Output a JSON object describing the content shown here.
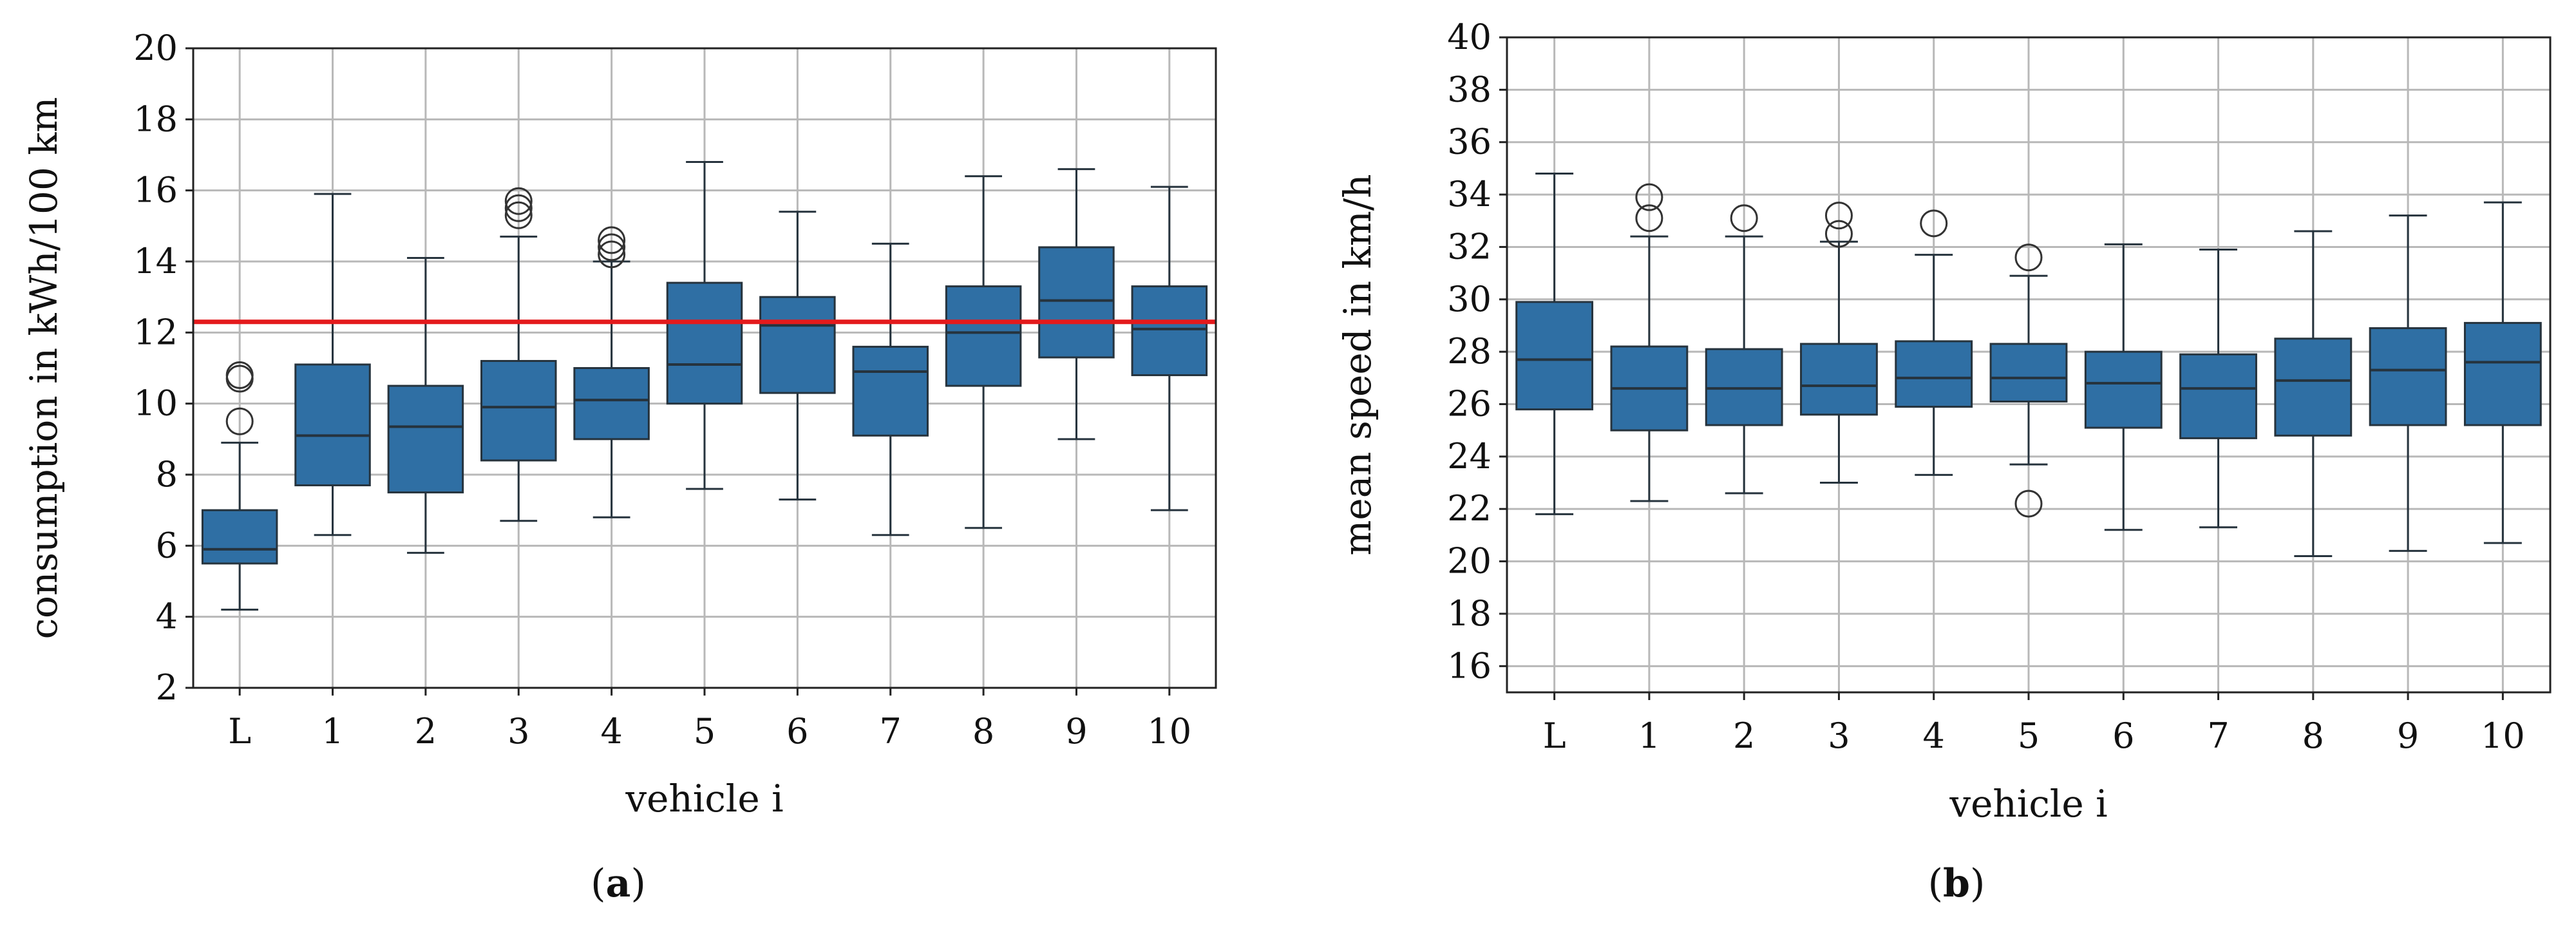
{
  "colors": {
    "box_fill": "#2f6fa4",
    "box_edge": "#26333d",
    "grid": "#b8b8b8",
    "reference_line": "#e41a1c",
    "highlight_tick": "#e41a1c"
  },
  "captions": {
    "a": "a",
    "b": "b"
  },
  "chart_data": [
    {
      "id": "a",
      "type": "boxplot",
      "xlabel": "vehicle i",
      "ylabel": "consumption in kWh/100 km",
      "categories": [
        "L",
        "1",
        "2",
        "3",
        "4",
        "5",
        "6",
        "7",
        "8",
        "9",
        "10"
      ],
      "highlighted_categories": [
        "L"
      ],
      "ylim": [
        2,
        20
      ],
      "yticks": [
        2,
        4,
        6,
        8,
        10,
        12,
        14,
        16,
        18,
        20
      ],
      "grid": true,
      "reference_line": {
        "y": 12.3,
        "color": "#e41a1c"
      },
      "boxes": [
        {
          "category": "L",
          "whisker_low": 4.2,
          "q1": 5.5,
          "median": 5.9,
          "q3": 7.0,
          "whisker_high": 8.9,
          "outliers": [
            9.5,
            10.7,
            10.8
          ]
        },
        {
          "category": "1",
          "whisker_low": 6.3,
          "q1": 7.7,
          "median": 9.1,
          "q3": 11.1,
          "whisker_high": 15.9,
          "outliers": []
        },
        {
          "category": "2",
          "whisker_low": 5.8,
          "q1": 7.5,
          "median": 9.35,
          "q3": 10.5,
          "whisker_high": 14.1,
          "outliers": []
        },
        {
          "category": "3",
          "whisker_low": 6.7,
          "q1": 8.4,
          "median": 9.9,
          "q3": 11.2,
          "whisker_high": 14.7,
          "outliers": [
            15.3,
            15.5,
            15.7
          ]
        },
        {
          "category": "4",
          "whisker_low": 6.8,
          "q1": 9.0,
          "median": 10.1,
          "q3": 11.0,
          "whisker_high": 14.0,
          "outliers": [
            14.2,
            14.4,
            14.6
          ]
        },
        {
          "category": "5",
          "whisker_low": 7.6,
          "q1": 10.0,
          "median": 11.1,
          "q3": 13.4,
          "whisker_high": 16.8,
          "outliers": []
        },
        {
          "category": "6",
          "whisker_low": 7.3,
          "q1": 10.3,
          "median": 12.2,
          "q3": 13.0,
          "whisker_high": 15.4,
          "outliers": []
        },
        {
          "category": "7",
          "whisker_low": 6.3,
          "q1": 9.1,
          "median": 10.9,
          "q3": 11.6,
          "whisker_high": 14.5,
          "outliers": []
        },
        {
          "category": "8",
          "whisker_low": 6.5,
          "q1": 10.5,
          "median": 12.0,
          "q3": 13.3,
          "whisker_high": 16.4,
          "outliers": []
        },
        {
          "category": "9",
          "whisker_low": 9.0,
          "q1": 11.3,
          "median": 12.9,
          "q3": 14.4,
          "whisker_high": 16.6,
          "outliers": []
        },
        {
          "category": "10",
          "whisker_low": 7.0,
          "q1": 10.8,
          "median": 12.1,
          "q3": 13.3,
          "whisker_high": 16.1,
          "outliers": []
        }
      ]
    },
    {
      "id": "b",
      "type": "boxplot",
      "xlabel": "vehicle i",
      "ylabel": "mean speed in km/h",
      "categories": [
        "L",
        "1",
        "2",
        "3",
        "4",
        "5",
        "6",
        "7",
        "8",
        "9",
        "10"
      ],
      "highlighted_categories": [
        "L"
      ],
      "ylim": [
        15,
        40
      ],
      "yticks": [
        16,
        18,
        20,
        22,
        24,
        26,
        28,
        30,
        32,
        34,
        36,
        38,
        40
      ],
      "grid": true,
      "boxes": [
        {
          "category": "L",
          "whisker_low": 21.8,
          "q1": 25.8,
          "median": 27.7,
          "q3": 29.9,
          "whisker_high": 34.8,
          "outliers": []
        },
        {
          "category": "1",
          "whisker_low": 22.3,
          "q1": 25.0,
          "median": 26.6,
          "q3": 28.2,
          "whisker_high": 32.4,
          "outliers": [
            33.1,
            33.9
          ]
        },
        {
          "category": "2",
          "whisker_low": 22.6,
          "q1": 25.2,
          "median": 26.6,
          "q3": 28.1,
          "whisker_high": 32.4,
          "outliers": [
            33.1
          ]
        },
        {
          "category": "3",
          "whisker_low": 23.0,
          "q1": 25.6,
          "median": 26.7,
          "q3": 28.3,
          "whisker_high": 32.2,
          "outliers": [
            32.5,
            33.2
          ]
        },
        {
          "category": "4",
          "whisker_low": 23.3,
          "q1": 25.9,
          "median": 27.0,
          "q3": 28.4,
          "whisker_high": 31.7,
          "outliers": [
            32.9
          ]
        },
        {
          "category": "5",
          "whisker_low": 23.7,
          "q1": 26.1,
          "median": 27.0,
          "q3": 28.3,
          "whisker_high": 30.9,
          "outliers": [
            31.6,
            22.2
          ]
        },
        {
          "category": "6",
          "whisker_low": 21.2,
          "q1": 25.1,
          "median": 26.8,
          "q3": 28.0,
          "whisker_high": 32.1,
          "outliers": []
        },
        {
          "category": "7",
          "whisker_low": 21.3,
          "q1": 24.7,
          "median": 26.6,
          "q3": 27.9,
          "whisker_high": 31.9,
          "outliers": []
        },
        {
          "category": "8",
          "whisker_low": 20.2,
          "q1": 24.8,
          "median": 26.9,
          "q3": 28.5,
          "whisker_high": 32.6,
          "outliers": []
        },
        {
          "category": "9",
          "whisker_low": 20.4,
          "q1": 25.2,
          "median": 27.3,
          "q3": 28.9,
          "whisker_high": 33.2,
          "outliers": []
        },
        {
          "category": "10",
          "whisker_low": 20.7,
          "q1": 25.2,
          "median": 27.6,
          "q3": 29.1,
          "whisker_high": 33.7,
          "outliers": []
        }
      ]
    }
  ]
}
